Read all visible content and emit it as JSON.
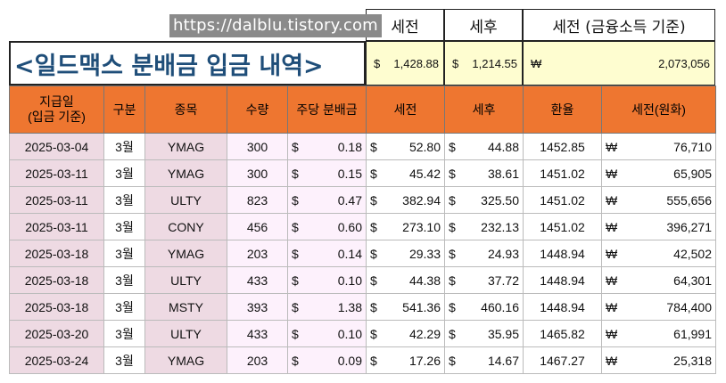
{
  "watermark": "https://dalblu.tistory.com",
  "title": "<일드맥스 분배금 입금 내역>",
  "summary_headers": [
    "세전",
    "세후",
    "세전 (금융소득 기준)"
  ],
  "summary": {
    "pre_tax": {
      "sym": "$",
      "val": "1,428.88"
    },
    "post_tax": {
      "sym": "$",
      "val": "1,214.55"
    },
    "pre_tax_krw": {
      "sym": "₩",
      "val": "2,073,056"
    }
  },
  "columns": [
    "지급일\n(입금 기준)",
    "구분",
    "종목",
    "수량",
    "주당 분배금",
    "세전",
    "세후",
    "환율",
    "세전(원화)"
  ],
  "rows": [
    {
      "date": "2025-03-04",
      "type": "3월",
      "ticker": "YMAG",
      "qty": "300",
      "dps_sym": "$",
      "dps": "0.18",
      "pre_sym": "$",
      "pre": "52.80",
      "post_sym": "$",
      "post": "44.88",
      "fx": "1452.85",
      "krw_sym": "₩",
      "krw": "76,710"
    },
    {
      "date": "2025-03-11",
      "type": "3월",
      "ticker": "YMAG",
      "qty": "300",
      "dps_sym": "$",
      "dps": "0.15",
      "pre_sym": "$",
      "pre": "45.42",
      "post_sym": "$",
      "post": "38.61",
      "fx": "1451.02",
      "krw_sym": "₩",
      "krw": "65,905"
    },
    {
      "date": "2025-03-11",
      "type": "3월",
      "ticker": "ULTY",
      "qty": "823",
      "dps_sym": "$",
      "dps": "0.47",
      "pre_sym": "$",
      "pre": "382.94",
      "post_sym": "$",
      "post": "325.50",
      "fx": "1451.02",
      "krw_sym": "₩",
      "krw": "555,656"
    },
    {
      "date": "2025-03-11",
      "type": "3월",
      "ticker": "CONY",
      "qty": "456",
      "dps_sym": "$",
      "dps": "0.60",
      "pre_sym": "$",
      "pre": "273.10",
      "post_sym": "$",
      "post": "232.13",
      "fx": "1451.02",
      "krw_sym": "₩",
      "krw": "396,271"
    },
    {
      "date": "2025-03-18",
      "type": "3월",
      "ticker": "YMAG",
      "qty": "203",
      "dps_sym": "$",
      "dps": "0.14",
      "pre_sym": "$",
      "pre": "29.33",
      "post_sym": "$",
      "post": "24.93",
      "fx": "1448.94",
      "krw_sym": "₩",
      "krw": "42,502"
    },
    {
      "date": "2025-03-18",
      "type": "3월",
      "ticker": "ULTY",
      "qty": "433",
      "dps_sym": "$",
      "dps": "0.10",
      "pre_sym": "$",
      "pre": "44.38",
      "post_sym": "$",
      "post": "37.72",
      "fx": "1448.94",
      "krw_sym": "₩",
      "krw": "64,301"
    },
    {
      "date": "2025-03-18",
      "type": "3월",
      "ticker": "MSTY",
      "qty": "393",
      "dps_sym": "$",
      "dps": "1.38",
      "pre_sym": "$",
      "pre": "541.36",
      "post_sym": "$",
      "post": "460.16",
      "fx": "1448.94",
      "krw_sym": "₩",
      "krw": "784,400"
    },
    {
      "date": "2025-03-20",
      "type": "3월",
      "ticker": "ULTY",
      "qty": "433",
      "dps_sym": "$",
      "dps": "0.10",
      "pre_sym": "$",
      "pre": "42.29",
      "post_sym": "$",
      "post": "35.95",
      "fx": "1465.82",
      "krw_sym": "₩",
      "krw": "61,991"
    },
    {
      "date": "2025-03-24",
      "type": "3월",
      "ticker": "YMAG",
      "qty": "203",
      "dps_sym": "$",
      "dps": "0.09",
      "pre_sym": "$",
      "pre": "17.26",
      "post_sym": "$",
      "post": "14.67",
      "fx": "1467.27",
      "krw_sym": "₩",
      "krw": "25,318"
    }
  ],
  "colors": {
    "header_orange": "#ee7630",
    "row_pink": "#eedae3",
    "row_lavender": "#fdf1fc",
    "summary_yellow": "#fefdd0",
    "title_blue": "#1f4e79"
  }
}
